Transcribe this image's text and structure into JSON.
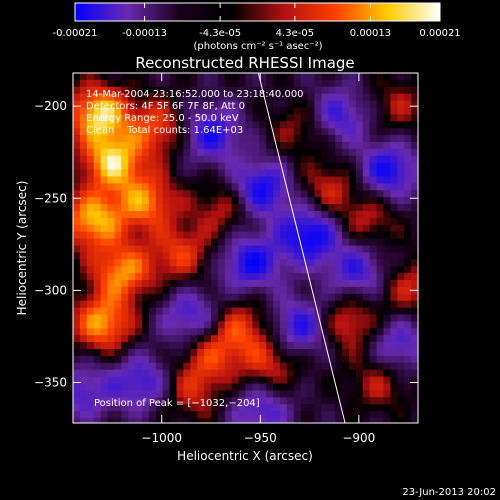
{
  "colorbar": {
    "tick_labels": [
      "-0.00021",
      "-0.00013",
      "-4.3e-05",
      "4.3e-05",
      "0.00013",
      "0.00021"
    ],
    "tick_values": [
      -0.00021,
      -0.00013,
      -4.3e-05,
      4.3e-05,
      0.00013,
      0.00021
    ],
    "range": [
      -0.00021,
      0.00021
    ],
    "units_label": "(photons cm⁻² s⁻¹ asec⁻²)",
    "colors": [
      "#0000ff",
      "#6a2ab0",
      "#1a001a",
      "#000000",
      "#b01010",
      "#ff4000",
      "#ffcc00",
      "#ffffff"
    ]
  },
  "chart_data": {
    "type": "heatmap",
    "title": "Reconstructed RHESSI Image",
    "xlabel": "Heliocentric X (arcsec)",
    "ylabel": "Heliocentric Y (arcsec)",
    "xlim": [
      -1045,
      -870
    ],
    "ylim": [
      -372,
      -182
    ],
    "x_ticks": [
      -1000,
      -950,
      -900
    ],
    "y_ticks": [
      -200,
      -250,
      -300,
      -350
    ],
    "x_tick_labels": [
      "−1000",
      "−950",
      "−900"
    ],
    "y_tick_labels": [
      "−200",
      "−250",
      "−300",
      "−350"
    ],
    "info_lines": [
      "14-Mar-2004 23:16:52.000 to 23:18:40.000",
      "Detectors: 4F 5F 6F 7F 8F, Att 0",
      "Energy Range: 25.0 - 50.0 keV",
      "Clean    Total counts: 1.64E+03"
    ],
    "peak_label": "Position of Peak = [−1032,−204]",
    "peak": [
      -1032,
      -204
    ],
    "limb_line": {
      "x": [
        -951,
        -907
      ],
      "y": [
        -182,
        -372
      ]
    },
    "hotspots": [
      {
        "x": -1032,
        "y": -204,
        "v": 1.0
      },
      {
        "x": -1025,
        "y": -230,
        "v": 0.95
      },
      {
        "x": -1035,
        "y": -262,
        "v": 0.9
      },
      {
        "x": -1020,
        "y": -290,
        "v": 0.8
      },
      {
        "x": -1030,
        "y": -318,
        "v": 0.85
      },
      {
        "x": -1008,
        "y": -252,
        "v": 0.75
      },
      {
        "x": -1002,
        "y": -212,
        "v": 0.6
      },
      {
        "x": -990,
        "y": -280,
        "v": 0.55
      },
      {
        "x": -975,
        "y": -335,
        "v": 0.5
      },
      {
        "x": -960,
        "y": -320,
        "v": 0.55
      },
      {
        "x": -968,
        "y": -255,
        "v": 0.45
      },
      {
        "x": -945,
        "y": -340,
        "v": 0.5
      },
      {
        "x": -985,
        "y": -355,
        "v": 0.45
      },
      {
        "x": -930,
        "y": -212,
        "v": 0.35
      },
      {
        "x": -915,
        "y": -245,
        "v": 0.45
      },
      {
        "x": -905,
        "y": -318,
        "v": 0.55
      },
      {
        "x": -895,
        "y": -262,
        "v": 0.4
      },
      {
        "x": -880,
        "y": -200,
        "v": 0.35
      },
      {
        "x": -875,
        "y": -298,
        "v": 0.45
      },
      {
        "x": -890,
        "y": -350,
        "v": 0.4
      }
    ],
    "coldspots": [
      {
        "x": -975,
        "y": -215,
        "v": -0.7
      },
      {
        "x": -950,
        "y": -245,
        "v": -0.8
      },
      {
        "x": -955,
        "y": -285,
        "v": -0.75
      },
      {
        "x": -985,
        "y": -315,
        "v": -0.6
      },
      {
        "x": -925,
        "y": -270,
        "v": -0.85
      },
      {
        "x": -930,
        "y": -320,
        "v": -0.7
      },
      {
        "x": -910,
        "y": -205,
        "v": -0.6
      },
      {
        "x": -885,
        "y": -235,
        "v": -0.75
      },
      {
        "x": -900,
        "y": -290,
        "v": -0.6
      },
      {
        "x": -1010,
        "y": -350,
        "v": -0.6
      },
      {
        "x": -950,
        "y": -365,
        "v": -0.55
      },
      {
        "x": -1040,
        "y": -355,
        "v": -0.5
      },
      {
        "x": -880,
        "y": -330,
        "v": -0.55
      }
    ]
  },
  "footer": {
    "timestamp": "23-Jun-2013 20:02"
  }
}
